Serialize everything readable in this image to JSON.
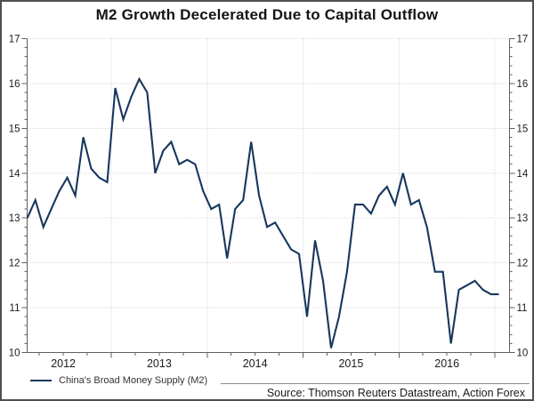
{
  "title": "M2 Growth Decelerated Due to Capital Outflow",
  "legend": {
    "label": "China's Broad Money Supply (M2)",
    "line_color": "#17375e"
  },
  "source": "Source: Thomson Reuters Datastream, Action Forex",
  "chart_data": {
    "type": "line",
    "title": "M2 Growth Decelerated Due to Capital Outflow",
    "series": [
      {
        "name": "China's Broad Money Supply (M2)",
        "frequency": "monthly",
        "start_month": "2012-02",
        "values": [
          13.0,
          13.4,
          12.8,
          13.2,
          13.6,
          13.9,
          13.5,
          14.8,
          14.1,
          13.9,
          13.8,
          15.9,
          15.2,
          15.7,
          16.1,
          15.8,
          14.0,
          14.5,
          14.7,
          14.2,
          14.3,
          14.2,
          13.6,
          13.2,
          13.3,
          12.1,
          13.2,
          13.4,
          14.7,
          13.5,
          12.8,
          12.9,
          12.6,
          12.3,
          12.2,
          10.8,
          12.5,
          11.6,
          10.1,
          10.8,
          11.8,
          13.3,
          13.3,
          13.1,
          13.5,
          13.7,
          13.3,
          14.0,
          13.3,
          13.4,
          12.8,
          11.8,
          11.8,
          10.2,
          11.4,
          11.5,
          11.6,
          11.4,
          11.3,
          11.3
        ]
      }
    ],
    "x_year_labels": [
      "2012",
      "2013",
      "2014",
      "2015",
      "2016"
    ],
    "y_tick_labels": [
      "10",
      "11",
      "12",
      "13",
      "14",
      "15",
      "16",
      "17"
    ],
    "ylim": [
      10,
      17
    ],
    "y_major_step": 1,
    "y_minor_step": 0.2,
    "x_minor_step_months": 3,
    "legend_position": "bottom-left",
    "grid": "dotted horizontal lines at integer values, dotted vertical lines at year starts",
    "y_axis_sides": "both",
    "line_color": "#17375e",
    "axis_color": "#606060",
    "grid_color": "#c9c9c9"
  }
}
